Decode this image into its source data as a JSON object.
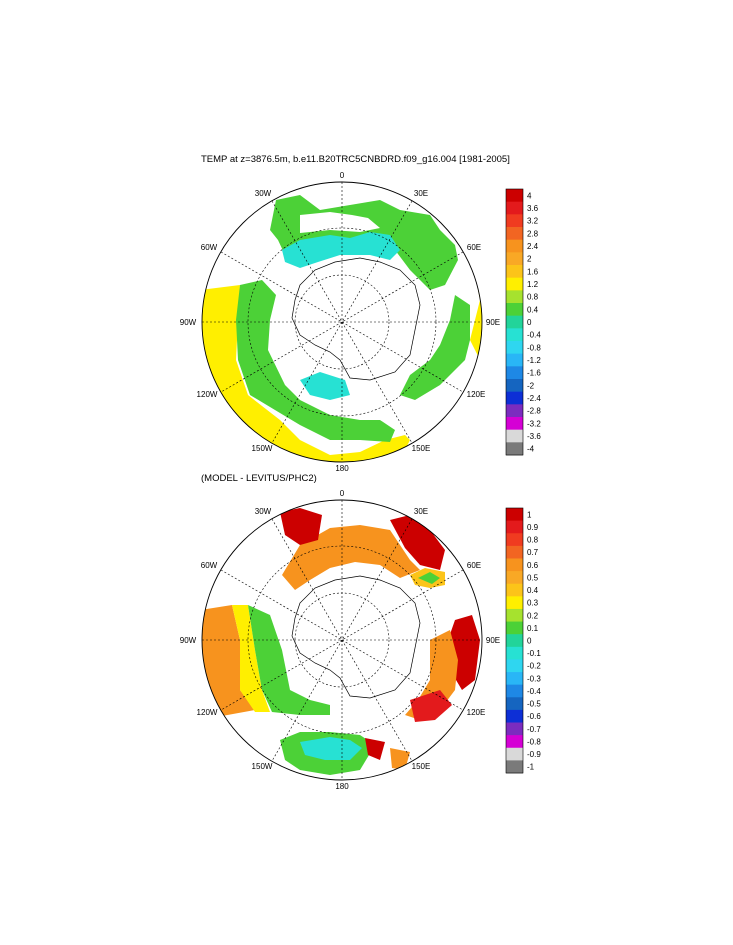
{
  "panels": [
    {
      "id": "top",
      "title": "TEMP at z=3876.5m, b.e11.B20TRC5CNBDRD.f09_g16.004 [1981-2005]",
      "lon_labels": [
        "0",
        "30E",
        "60E",
        "90E",
        "120E",
        "150E",
        "180",
        "150W",
        "120W",
        "90W",
        "60W",
        "30W"
      ],
      "colorbar": {
        "labels": [
          "4",
          "3.6",
          "3.2",
          "2.8",
          "2.4",
          "2",
          "1.6",
          "1.2",
          "0.8",
          "0.4",
          "0",
          "-0.4",
          "-0.8",
          "-1.2",
          "-1.6",
          "-2",
          "-2.4",
          "-2.8",
          "-3.2",
          "-3.6",
          "-4"
        ],
        "colors": [
          "#cc0000",
          "#e31a1c",
          "#f03b20",
          "#f26522",
          "#f7931e",
          "#f9a825",
          "#fcc419",
          "#ffef00",
          "#a6e22e",
          "#4cd137",
          "#22d49a",
          "#27e1d3",
          "#2fd6f0",
          "#29b6f6",
          "#1e88e5",
          "#1565c0",
          "#0d2fd6",
          "#7b2cbf",
          "#d500d5",
          "#d9d9d9",
          "#7a7a7a"
        ]
      }
    },
    {
      "id": "bottom",
      "title": "(MODEL - LEVITUS/PHC2)",
      "lon_labels": [
        "0",
        "30E",
        "60E",
        "90E",
        "120E",
        "150E",
        "180",
        "150W",
        "120W",
        "90W",
        "60W",
        "30W"
      ],
      "colorbar": {
        "labels": [
          "1",
          "0.9",
          "0.8",
          "0.7",
          "0.6",
          "0.5",
          "0.4",
          "0.3",
          "0.2",
          "0.1",
          "0",
          "-0.1",
          "-0.2",
          "-0.3",
          "-0.4",
          "-0.5",
          "-0.6",
          "-0.7",
          "-0.8",
          "-0.9",
          "-1"
        ],
        "colors": [
          "#cc0000",
          "#e31a1c",
          "#f03b20",
          "#f26522",
          "#f7931e",
          "#f9a825",
          "#fcc419",
          "#ffef00",
          "#a6e22e",
          "#4cd137",
          "#22d49a",
          "#27e1d3",
          "#2fd6f0",
          "#29b6f6",
          "#1e88e5",
          "#1565c0",
          "#0d2fd6",
          "#7b2cbf",
          "#d500d5",
          "#d9d9d9",
          "#7a7a7a"
        ]
      }
    }
  ]
}
